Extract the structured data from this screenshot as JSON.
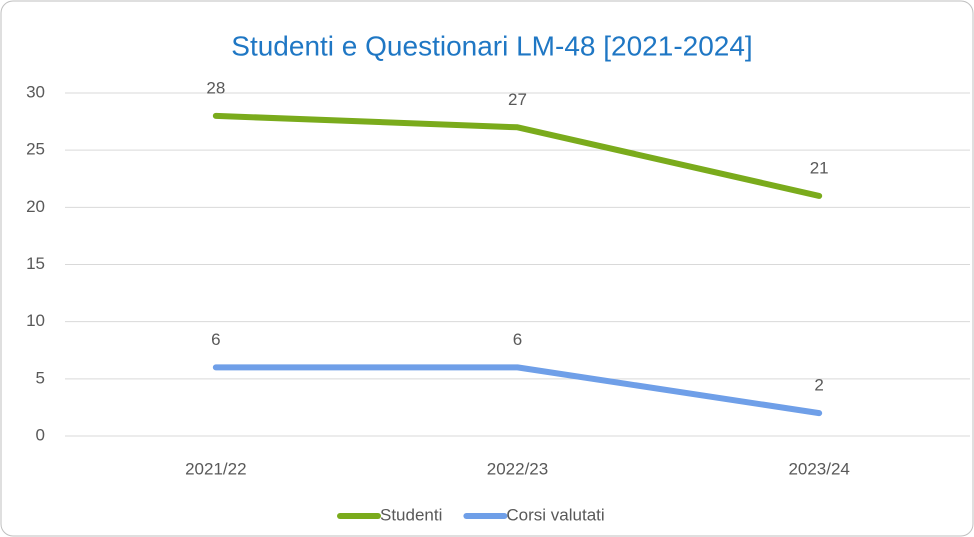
{
  "chart_data": {
    "type": "line",
    "title": "Studenti e Questionari LM-48 [2021-2024]",
    "categories": [
      "2021/22",
      "2022/23",
      "2023/24"
    ],
    "series": [
      {
        "name": "Studenti",
        "color": "#7aab1c",
        "values": [
          28,
          27,
          21
        ]
      },
      {
        "name": "Corsi valutati",
        "color": "#6f9fe8",
        "values": [
          6,
          6,
          2
        ]
      }
    ],
    "ylim": [
      0,
      30
    ],
    "yticks": [
      0,
      5,
      10,
      15,
      20,
      25,
      30
    ],
    "grid": true,
    "legend": "bottom"
  }
}
